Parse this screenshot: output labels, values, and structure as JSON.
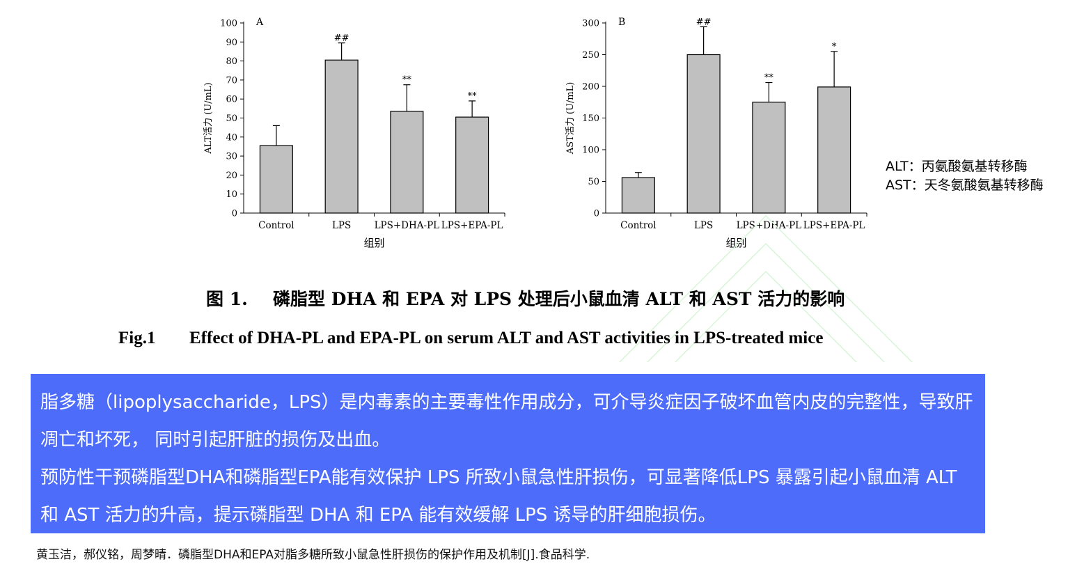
{
  "chart_data": [
    {
      "type": "bar",
      "panel_label": "A",
      "categories": [
        "Control",
        "LPS",
        "LPS+DHA-PL",
        "LPS+EPA-PL"
      ],
      "values": [
        35.5,
        80.5,
        53.5,
        50.5
      ],
      "errors": [
        10.5,
        9,
        14,
        8.5
      ],
      "significance": [
        "",
        "##",
        "**",
        "**"
      ],
      "xlabel": "组别",
      "ylabel": "ALT活力 (U/mL)",
      "ylim": [
        0,
        100
      ],
      "yticks": [
        0,
        10,
        20,
        30,
        40,
        50,
        60,
        70,
        80,
        90,
        100
      ],
      "grid": false,
      "bar_color": "#c0c0c0"
    },
    {
      "type": "bar",
      "panel_label": "B",
      "categories": [
        "Control",
        "LPS",
        "LPS+DHA-PL",
        "LPS+EPA-PL"
      ],
      "values": [
        56,
        250,
        175,
        199
      ],
      "errors": [
        8,
        44,
        31,
        56
      ],
      "significance": [
        "",
        "##",
        "**",
        "*"
      ],
      "xlabel": "组别",
      "ylabel": "AST活力 (U/mL)",
      "ylim": [
        0,
        300
      ],
      "yticks": [
        0,
        50,
        100,
        150,
        200,
        250,
        300
      ],
      "grid": false,
      "bar_color": "#c0c0c0"
    }
  ],
  "abbreviations": {
    "alt": "ALT：丙氨酸氨基转移酶",
    "ast": "AST：天冬氨酸氨基转移酶"
  },
  "caption": {
    "cn_num": "图 1.",
    "cn_text": "磷脂型 DHA 和 EPA 对 LPS 处理后小鼠血清 ALT 和 AST 活力的影响",
    "en_num": "Fig.1",
    "en_text": "Effect of DHA-PL and EPA-PL on serum ALT and AST activities in LPS-treated mice"
  },
  "summary": {
    "p1": "脂多糖（lipoplysaccharide，LPS）是内毒素的主要毒性作用成分，可介导炎症因子破坏血管内皮的完整性，导致肝凋亡和坏死， 同时引起肝脏的损伤及出血。",
    "p2": "预防性干预磷脂型DHA和磷脂型EPA能有效保护 LPS 所致小鼠急性肝损伤，可显著降低LPS 暴露引起小鼠血清 ALT 和 AST 活力的升高，提示磷脂型 DHA 和 EPA 能有效缓解 LPS 诱导的肝细胞损伤。",
    "background_color": "#4d6cfa"
  },
  "citation": "黄玉洁，郝仪铭，周梦晴．磷脂型DHA和EPA对脂多糖所致小鼠急性肝损伤的保护作用及机制[J].食品科学."
}
